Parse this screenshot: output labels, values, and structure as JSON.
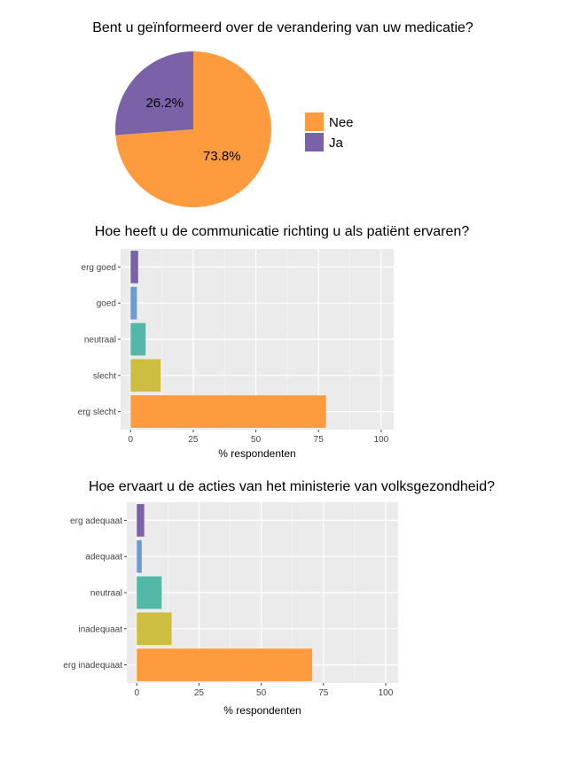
{
  "chart_data": [
    {
      "type": "pie",
      "title": "Bent  u geïnformeerd over de verandering van uw medicatie?",
      "categories": [
        "Nee",
        "Ja"
      ],
      "values": [
        73.8,
        26.2
      ],
      "labels": [
        "73.8%",
        "26.2%"
      ],
      "colors": [
        "#FF9B3F",
        "#7B62A8"
      ],
      "legend": "right"
    },
    {
      "type": "bar",
      "orientation": "horizontal",
      "title": "Hoe heeft u de communicatie richting u als patiënt ervaren?",
      "categories": [
        "erg goed",
        "goed",
        "neutraal",
        "slecht",
        "erg slecht"
      ],
      "values": [
        3,
        2.5,
        6,
        12,
        78
      ],
      "colors": [
        "#7B62A8",
        "#6A9BD3",
        "#53B8A8",
        "#CDBE42",
        "#FF9B3F"
      ],
      "xlabel": "% respondenten",
      "xlim": [
        -4,
        105
      ],
      "xticks": [
        0,
        25,
        50,
        75,
        100
      ],
      "grid": true
    },
    {
      "type": "bar",
      "orientation": "horizontal",
      "title": "Hoe ervaart u de acties van het ministerie van volksgezondheid?",
      "categories": [
        "erg adequaat",
        "adequaat",
        "neutraal",
        "inadequaat",
        "erg inadequaat"
      ],
      "values": [
        3,
        2,
        10,
        14,
        70.5
      ],
      "colors": [
        "#7B62A8",
        "#6A9BD3",
        "#53B8A8",
        "#CDBE42",
        "#FF9B3F"
      ],
      "xlabel": "% respondenten",
      "xlim": [
        -4,
        105
      ],
      "xticks": [
        0,
        25,
        50,
        75,
        100
      ],
      "grid": true
    }
  ]
}
